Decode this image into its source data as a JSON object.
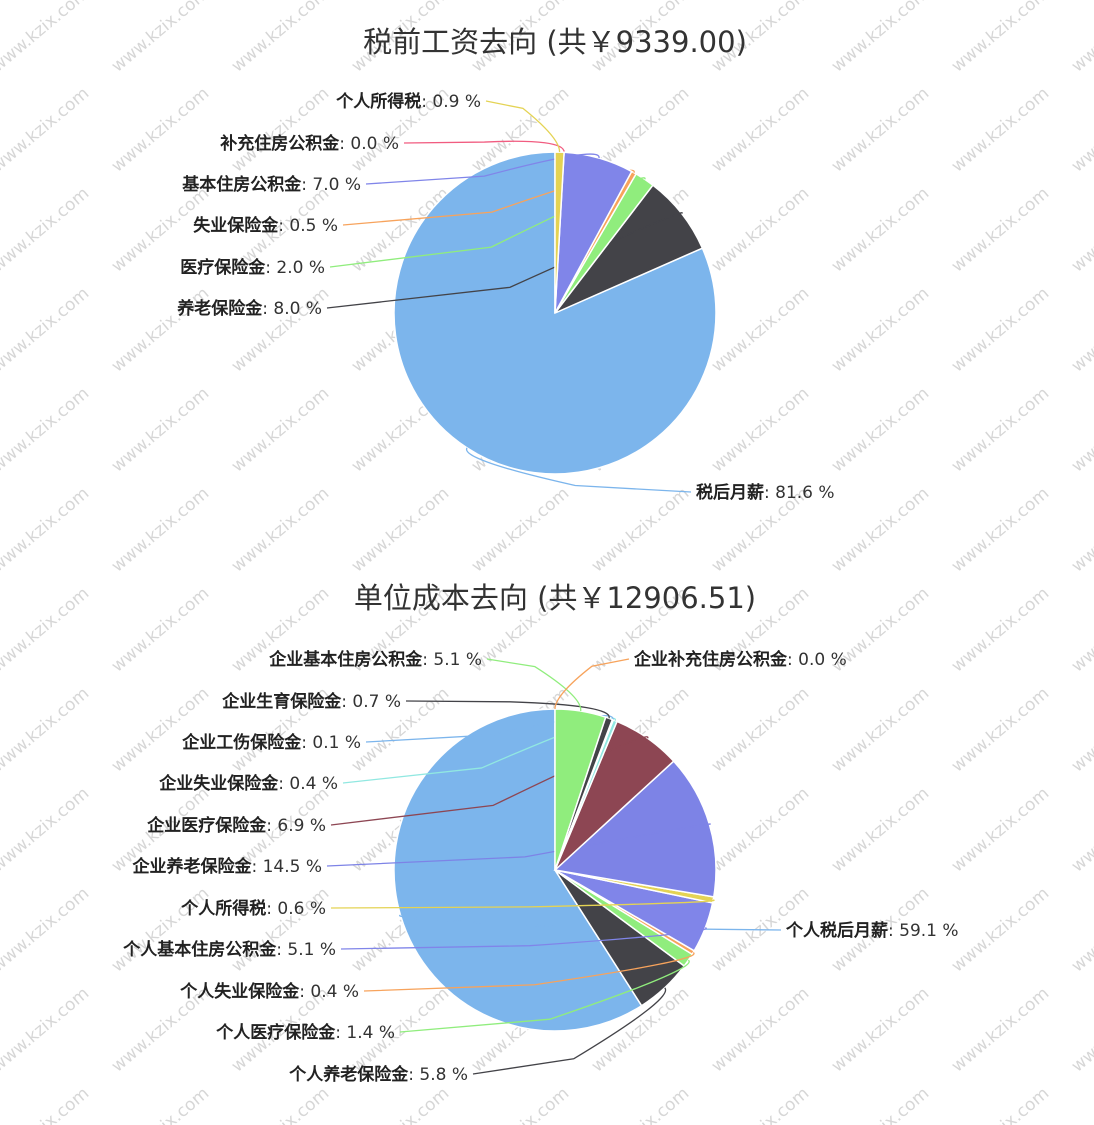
{
  "watermark": "www.kzix.com",
  "chart_data": [
    {
      "type": "pie",
      "title": "税前工资去向 (共￥9339.00)",
      "slices": [
        {
          "name": "税后月薪",
          "value": 81.6,
          "label": "81.6 %",
          "color": "#7cb5ec"
        },
        {
          "name": "养老保险金",
          "value": 8.0,
          "label": "8.0 %",
          "color": "#434348"
        },
        {
          "name": "医疗保险金",
          "value": 2.0,
          "label": "2.0 %",
          "color": "#90ed7d"
        },
        {
          "name": "失业保险金",
          "value": 0.5,
          "label": "0.5 %",
          "color": "#f7a35c"
        },
        {
          "name": "基本住房公积金",
          "value": 7.0,
          "label": "7.0 %",
          "color": "#8085e9"
        },
        {
          "name": "补充住房公积金",
          "value": 0.0,
          "label": "0.0 %",
          "color": "#f15c80"
        },
        {
          "name": "个人所得税",
          "value": 0.9,
          "label": "0.9 %",
          "color": "#e4d354"
        }
      ]
    },
    {
      "type": "pie",
      "title": "单位成本去向 (共￥12906.51)",
      "slices": [
        {
          "name": "个人税后月薪",
          "value": 59.1,
          "label": "59.1 %",
          "color": "#7cb5ec"
        },
        {
          "name": "个人养老保险金",
          "value": 5.8,
          "label": "5.8 %",
          "color": "#434348"
        },
        {
          "name": "个人医疗保险金",
          "value": 1.4,
          "label": "1.4 %",
          "color": "#90ed7d"
        },
        {
          "name": "个人失业保险金",
          "value": 0.4,
          "label": "0.4 %",
          "color": "#f7a35c"
        },
        {
          "name": "个人基本住房公积金",
          "value": 5.1,
          "label": "5.1 %",
          "color": "#8085e9"
        },
        {
          "name": "个人所得税",
          "value": 0.6,
          "label": "0.6 %",
          "color": "#e4d354"
        },
        {
          "name": "企业养老保险金",
          "value": 14.5,
          "label": "14.5 %",
          "color": "#7d83e6"
        },
        {
          "name": "企业医疗保险金",
          "value": 6.9,
          "label": "6.9 %",
          "color": "#8d4653"
        },
        {
          "name": "企业失业保险金",
          "value": 0.4,
          "label": "0.4 %",
          "color": "#91e8e1"
        },
        {
          "name": "企业工伤保险金",
          "value": 0.1,
          "label": "0.1 %",
          "color": "#7cb5ec"
        },
        {
          "name": "企业生育保险金",
          "value": 0.7,
          "label": "0.7 %",
          "color": "#434348"
        },
        {
          "name": "企业基本住房公积金",
          "value": 5.1,
          "label": "5.1 %",
          "color": "#90ed7d"
        },
        {
          "name": "企业补充住房公积金",
          "value": 0.0,
          "label": "0.0 %",
          "color": "#f7a35c"
        }
      ]
    }
  ]
}
